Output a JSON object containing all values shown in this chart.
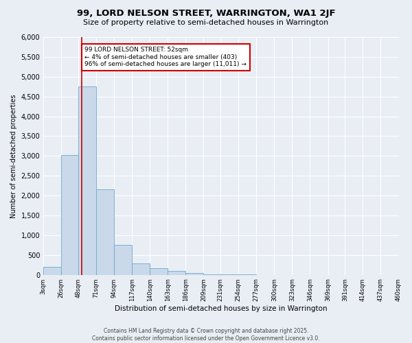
{
  "title": "99, LORD NELSON STREET, WARRINGTON, WA1 2JF",
  "subtitle": "Size of property relative to semi-detached houses in Warrington",
  "xlabel": "Distribution of semi-detached houses by size in Warrington",
  "ylabel": "Number of semi-detached properties",
  "footer_line1": "Contains HM Land Registry data © Crown copyright and database right 2025.",
  "footer_line2": "Contains public sector information licensed under the Open Government Licence v3.0.",
  "annotation_title": "99 LORD NELSON STREET: 52sqm",
  "annotation_line1": "← 4% of semi-detached houses are smaller (403)",
  "annotation_line2": "96% of semi-detached houses are larger (11,011) →",
  "property_size": 52,
  "bin_edges": [
    3,
    26,
    48,
    71,
    94,
    117,
    140,
    163,
    186,
    209,
    231,
    254,
    277,
    300,
    323,
    346,
    369,
    391,
    414,
    437,
    460
  ],
  "bin_labels": [
    "3sqm",
    "26sqm",
    "48sqm",
    "71sqm",
    "94sqm",
    "117sqm",
    "140sqm",
    "163sqm",
    "186sqm",
    "209sqm",
    "231sqm",
    "254sqm",
    "277sqm",
    "300sqm",
    "323sqm",
    "346sqm",
    "369sqm",
    "391sqm",
    "414sqm",
    "437sqm",
    "460sqm"
  ],
  "counts": [
    200,
    3030,
    4750,
    2150,
    750,
    290,
    160,
    100,
    55,
    20,
    10,
    5,
    3,
    2,
    1,
    1,
    1,
    1,
    1,
    1
  ],
  "bar_color": "#c9d9ea",
  "bar_edge_color": "#6fa8cc",
  "vline_color": "#cc0000",
  "vline_x": 52,
  "annotation_box_color": "#cc0000",
  "background_color": "#e8eef4",
  "grid_color": "#ffffff",
  "ylim": [
    0,
    6000
  ],
  "yticks": [
    0,
    500,
    1000,
    1500,
    2000,
    2500,
    3000,
    3500,
    4000,
    4500,
    5000,
    5500,
    6000
  ]
}
